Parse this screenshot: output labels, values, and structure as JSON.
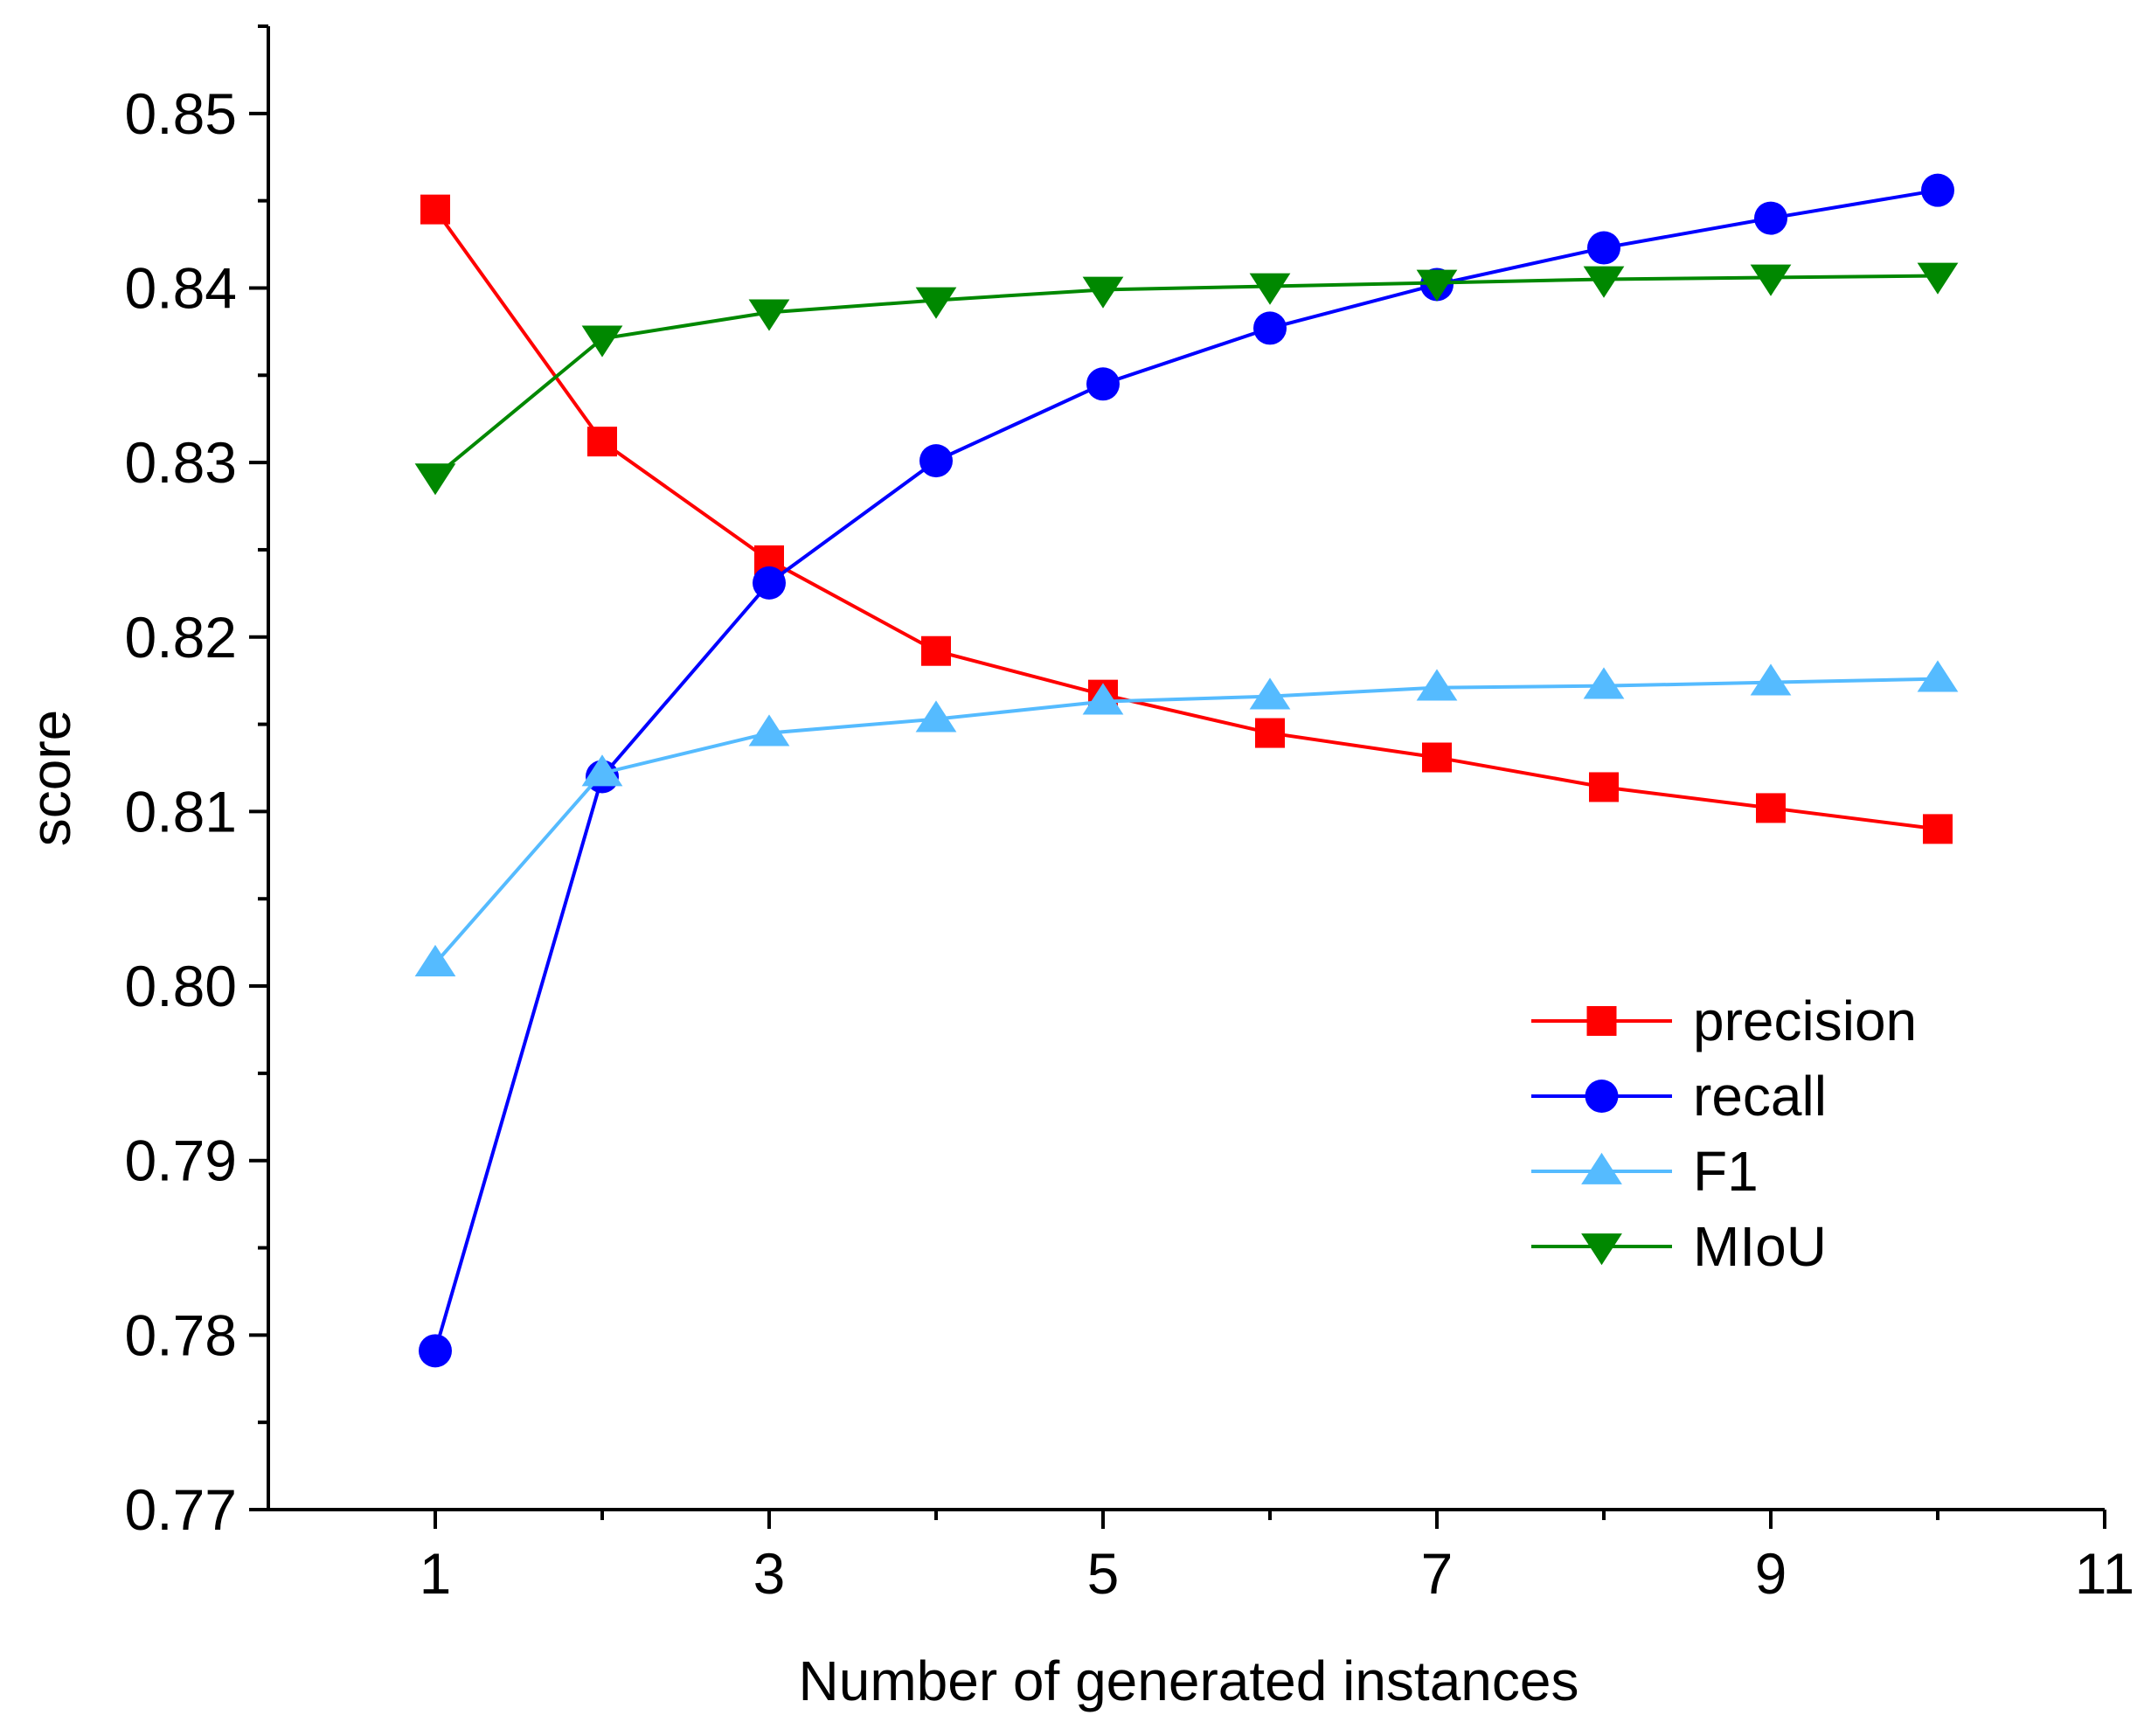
{
  "chart_data": {
    "type": "line",
    "title": "",
    "xlabel": "Number of generated instances",
    "ylabel": "score",
    "xlim": [
      0,
      11
    ],
    "ylim": [
      0.77,
      0.855
    ],
    "xticks": [
      1,
      3,
      5,
      7,
      9,
      11
    ],
    "xtick_labels": [
      "1",
      "3",
      "5",
      "7",
      "9",
      "11"
    ],
    "xminor": [
      2,
      4,
      6,
      8,
      10
    ],
    "yticks": [
      0.77,
      0.78,
      0.79,
      0.8,
      0.81,
      0.82,
      0.83,
      0.84,
      0.85
    ],
    "ytick_labels": [
      "0.77",
      "0.78",
      "0.79",
      "0.80",
      "0.81",
      "0.82",
      "0.83",
      "0.84",
      "0.85"
    ],
    "grid": false,
    "legend_position": "center-right",
    "x": [
      1,
      2,
      3,
      4,
      5,
      6,
      7,
      8,
      9,
      10
    ],
    "series": [
      {
        "name": "precision",
        "color": "#ff0000",
        "marker": "square",
        "values": [
          0.8445,
          0.8312,
          0.8244,
          0.8192,
          0.8167,
          0.8145,
          0.8131,
          0.8114,
          0.8102,
          0.809
        ]
      },
      {
        "name": "recall",
        "color": "#0000ff",
        "marker": "circle",
        "values": [
          0.7791,
          0.812,
          0.8231,
          0.8301,
          0.8345,
          0.8377,
          0.8402,
          0.8423,
          0.844,
          0.8456
        ]
      },
      {
        "name": "F1",
        "color": "#55bbff",
        "marker": "triangle-up",
        "values": [
          0.8013,
          0.8122,
          0.8145,
          0.8153,
          0.8163,
          0.8166,
          0.8171,
          0.8172,
          0.8174,
          0.8176
        ]
      },
      {
        "name": "MIoU",
        "color": "#008800",
        "marker": "triangle-down",
        "values": [
          0.8292,
          0.8371,
          0.8386,
          0.8393,
          0.8399,
          0.8401,
          0.8403,
          0.8405,
          0.8406,
          0.8407
        ]
      }
    ]
  }
}
